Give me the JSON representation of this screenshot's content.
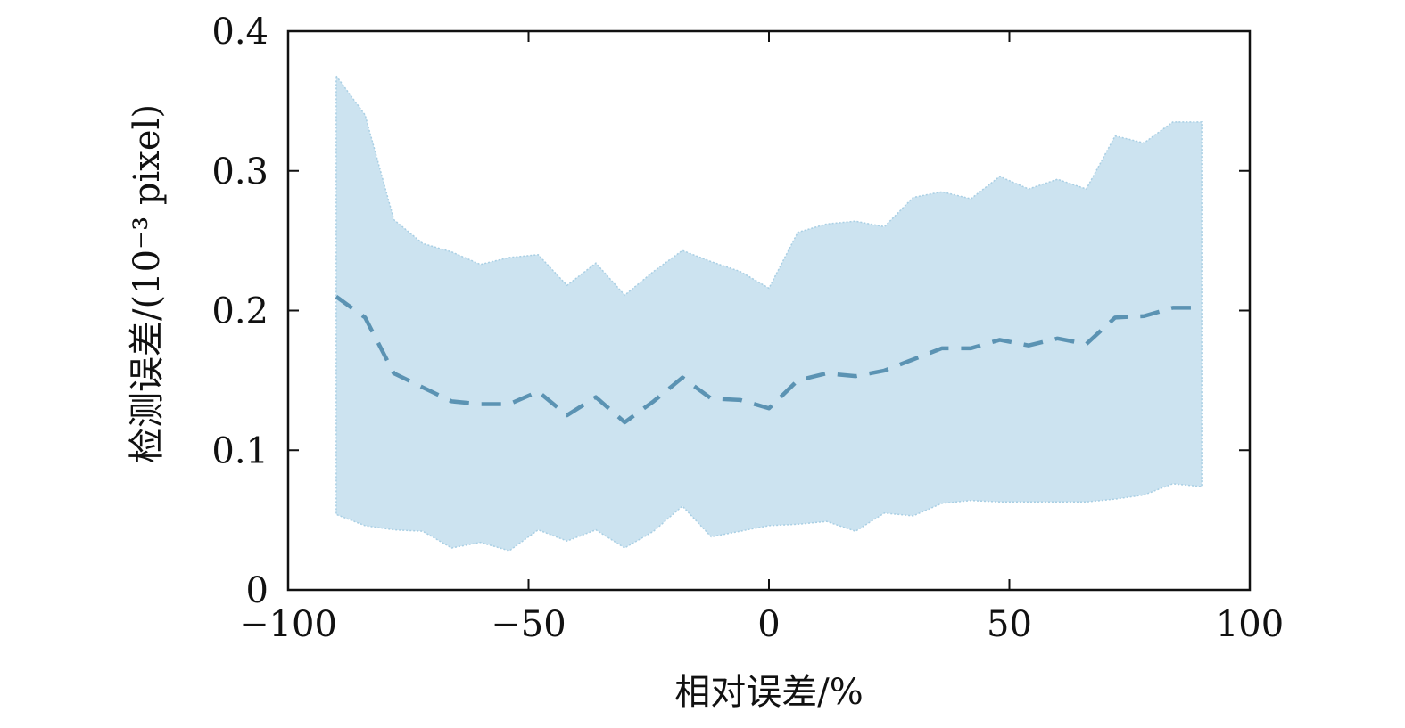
{
  "chart_data": {
    "type": "area",
    "xlabel": "相对误差/%",
    "ylabel": "检测误差/(10⁻³ pixel)",
    "xlim": [
      -100,
      100
    ],
    "ylim": [
      0,
      0.4
    ],
    "xticks": [
      -100,
      -50,
      0,
      50,
      100
    ],
    "xtick_labels": [
      "−100",
      "−50",
      "0",
      "50",
      "100"
    ],
    "yticks": [
      0,
      0.1,
      0.2,
      0.3,
      0.4
    ],
    "ytick_labels": [
      "0",
      "0.1",
      "0.2",
      "0.3",
      "0.4"
    ],
    "grid": false,
    "x": [
      -90,
      -84,
      -78,
      -72,
      -66,
      -60,
      -54,
      -48,
      -42,
      -36,
      -30,
      -24,
      -18,
      -12,
      -6,
      0,
      6,
      12,
      18,
      24,
      30,
      36,
      42,
      48,
      54,
      60,
      66,
      72,
      78,
      84,
      90
    ],
    "series": [
      {
        "role": "mean",
        "style": "dashed",
        "values": [
          0.21,
          0.195,
          0.155,
          0.145,
          0.135,
          0.133,
          0.133,
          0.142,
          0.125,
          0.138,
          0.12,
          0.135,
          0.152,
          0.137,
          0.136,
          0.13,
          0.15,
          0.155,
          0.153,
          0.157,
          0.165,
          0.173,
          0.173,
          0.179,
          0.175,
          0.18,
          0.176,
          0.195,
          0.196,
          0.202,
          0.202
        ]
      },
      {
        "role": "upper-bound",
        "values": [
          0.368,
          0.34,
          0.265,
          0.248,
          0.242,
          0.233,
          0.238,
          0.24,
          0.218,
          0.234,
          0.211,
          0.228,
          0.243,
          0.235,
          0.228,
          0.216,
          0.256,
          0.262,
          0.264,
          0.26,
          0.281,
          0.285,
          0.28,
          0.296,
          0.287,
          0.294,
          0.287,
          0.325,
          0.32,
          0.335,
          0.335
        ]
      },
      {
        "role": "lower-bound",
        "values": [
          0.054,
          0.046,
          0.043,
          0.042,
          0.03,
          0.034,
          0.028,
          0.043,
          0.035,
          0.043,
          0.03,
          0.042,
          0.06,
          0.038,
          0.042,
          0.046,
          0.047,
          0.049,
          0.042,
          0.055,
          0.053,
          0.062,
          0.064,
          0.063,
          0.063,
          0.063,
          0.063,
          0.065,
          0.068,
          0.076,
          0.074
        ]
      }
    ],
    "colors": {
      "band_fill": "#cce3f0",
      "band_edge": "#a9cfe4",
      "mean_line": "#5b93b3",
      "axes": "#111111"
    }
  }
}
